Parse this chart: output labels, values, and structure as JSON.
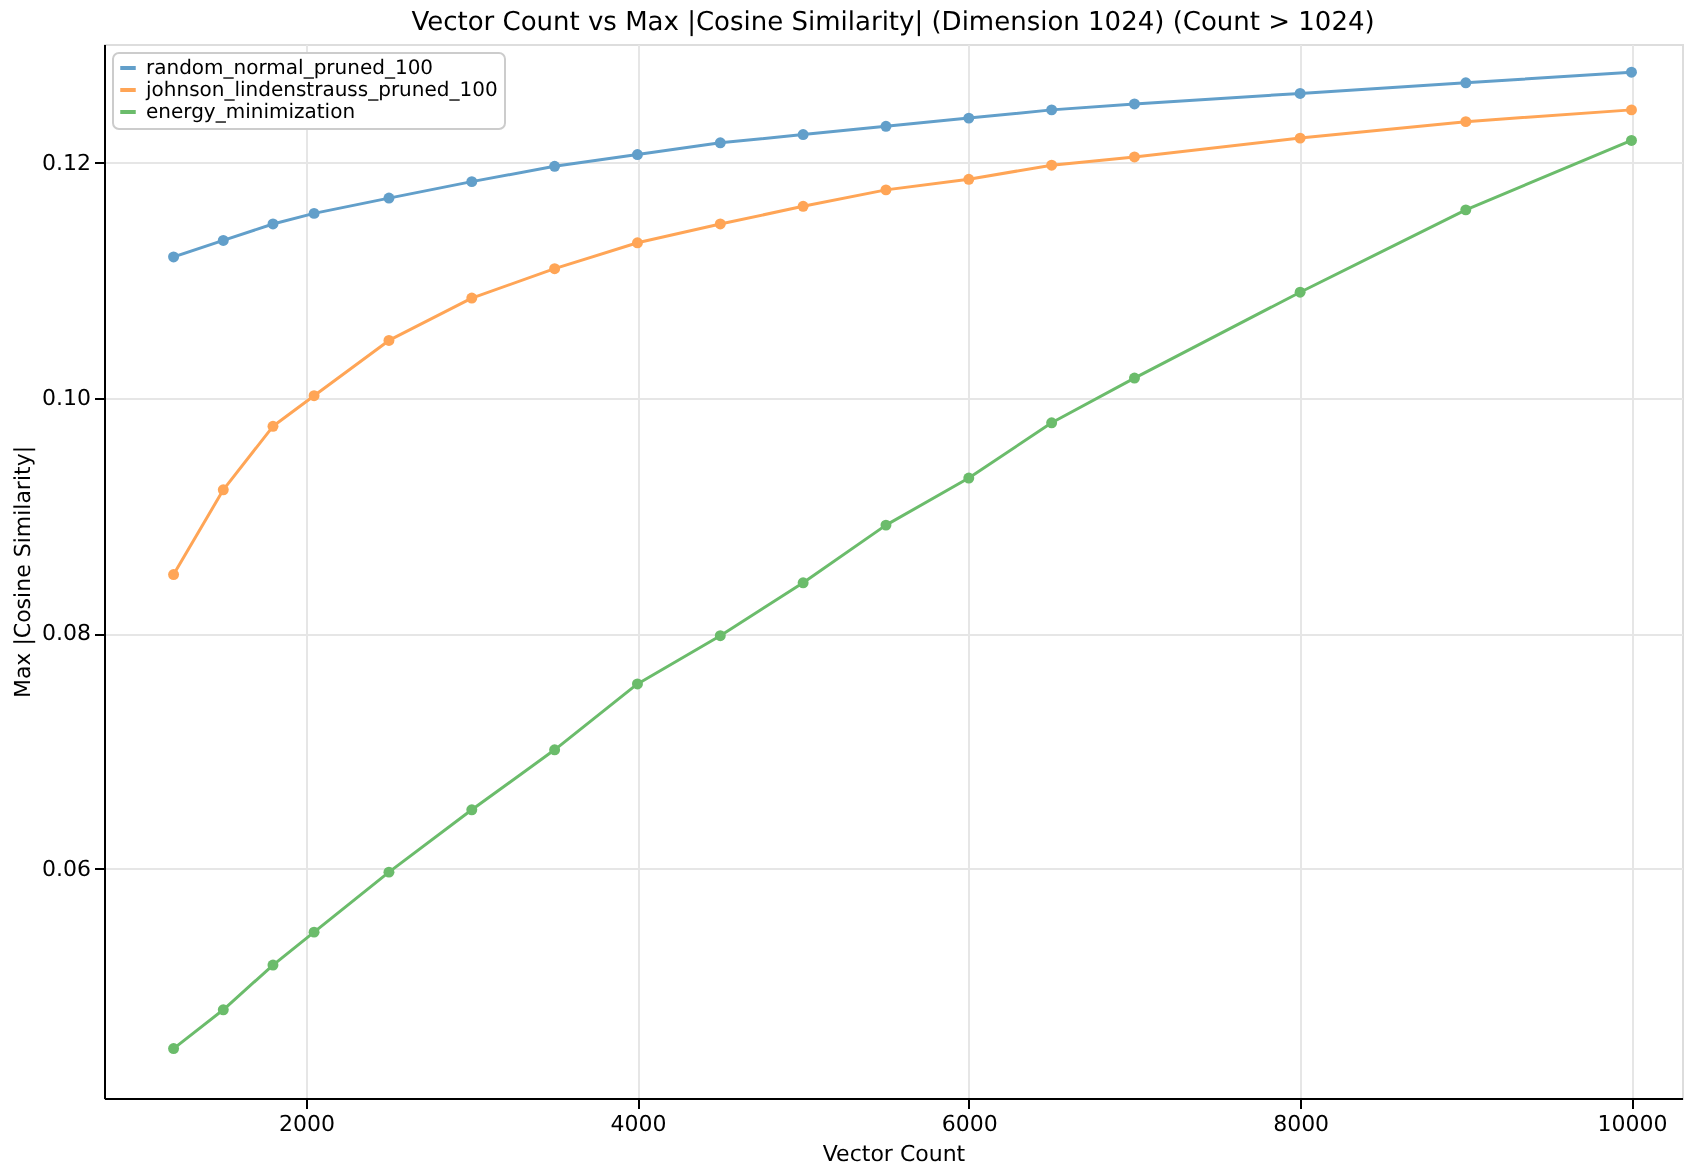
{
  "chart_data": {
    "type": "line",
    "title": "Vector Count vs Max |Cosine Similarity| (Dimension 1024) (Count > 1024)",
    "xlabel": "Vector Count",
    "ylabel": "Max |Cosine Similarity|",
    "x": [
      1200,
      1500,
      1800,
      2048,
      2500,
      3000,
      3500,
      4000,
      4500,
      5000,
      5500,
      6000,
      6500,
      7000,
      8000,
      9000,
      10000
    ],
    "series": [
      {
        "name": "random_normal_pruned_100",
        "color": "#629fca",
        "values": [
          0.112,
          0.1134,
          0.1148,
          0.1157,
          0.117,
          0.1184,
          0.1197,
          0.1207,
          0.1217,
          0.1224,
          0.1231,
          0.1238,
          0.1245,
          0.125,
          0.1259,
          0.1268,
          0.1277
        ]
      },
      {
        "name": "johnson_lindenstrauss_pruned_100",
        "color": "#ffa556",
        "values": [
          0.085,
          0.0922,
          0.0976,
          0.1002,
          0.1049,
          0.1085,
          0.111,
          0.1132,
          0.1148,
          0.1163,
          0.1177,
          0.1186,
          0.1198,
          0.1205,
          0.1221,
          0.1235,
          0.1245
        ]
      },
      {
        "name": "energy_minimization",
        "color": "#6bbc6b",
        "values": [
          0.0447,
          0.048,
          0.0518,
          0.0546,
          0.0597,
          0.065,
          0.0701,
          0.0757,
          0.0798,
          0.0843,
          0.0892,
          0.0932,
          0.0979,
          0.1017,
          0.109,
          0.116,
          0.1219
        ]
      }
    ],
    "xlim": [
      780,
      10305
    ],
    "xticks": [
      2000,
      4000,
      6000,
      8000,
      10000
    ],
    "ylim": [
      0.0405,
      0.1301
    ],
    "yticks": [
      {
        "value": 0.06,
        "label": "0.06"
      },
      {
        "value": 0.08,
        "label": "0.08"
      },
      {
        "value": 0.1,
        "label": "0.10"
      },
      {
        "value": 0.12,
        "label": "0.12"
      }
    ],
    "grid": true,
    "legend": "top left",
    "marker": "circle",
    "line_style": "solid"
  }
}
